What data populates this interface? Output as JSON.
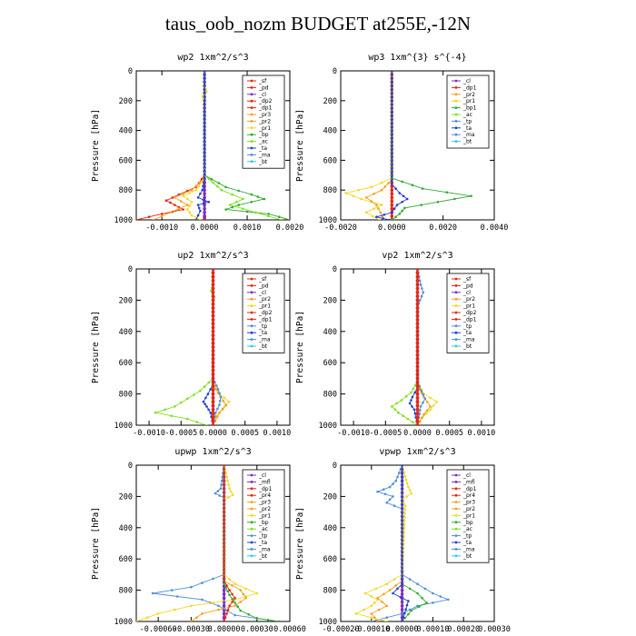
{
  "title": "taus_oob_nozm  BUDGET at255E,-12N",
  "chart_data": [
    {
      "type": "line",
      "title": "wp2  1xm^2/s^3",
      "ylabel": "Pressure [hPa]",
      "xlim": [
        -0.0016,
        0.002
      ],
      "ylim": [
        1000,
        0
      ],
      "xticks": [
        -0.001,
        0.0,
        0.001,
        0.002
      ],
      "xticklabels": [
        "-0.0010",
        "0.0000",
        "0.0010",
        "0.0020"
      ],
      "yticks": [
        0,
        200,
        400,
        600,
        800,
        1000
      ],
      "legend_position": "top-right",
      "legend": [
        "_sf",
        "_pd",
        "_cl",
        "_dp2",
        "_dp1",
        "_pr3",
        "_pr2",
        "_pr1",
        "_bp",
        "_ac",
        "_ta",
        "_ma",
        "_bt"
      ],
      "series": [
        {
          "name": "_sf",
          "color": "#e8250f",
          "y": [
            975,
            1000
          ],
          "x": [
            0.0,
            0.0
          ]
        },
        {
          "name": "_pd",
          "color": "#7b2fbf",
          "y": [
            0,
            1000
          ],
          "x": [
            0.0,
            0.0
          ]
        },
        {
          "name": "_cl",
          "color": "#e8250f",
          "y": [
            0,
            700,
            780,
            830,
            870,
            900,
            930,
            960,
            1000
          ],
          "x": [
            0.0,
            0.0,
            -0.0002,
            -0.0006,
            -0.0009,
            -0.0007,
            -0.0005,
            -0.001,
            -0.0016
          ]
        },
        {
          "name": "_pr1",
          "color": "#f4a020",
          "y": [
            0,
            720,
            800,
            850,
            900,
            950,
            1000
          ],
          "x": [
            0.0,
            0.0,
            -0.0003,
            -0.0007,
            -0.0004,
            -0.0008,
            -0.0012
          ]
        },
        {
          "name": "_pr2",
          "color": "#f4d820",
          "y": [
            0,
            100,
            140,
            170,
            200,
            720,
            800,
            840,
            880,
            930,
            970,
            1000
          ],
          "x": [
            0.0,
            0.0,
            5e-05,
            -5e-05,
            0.0,
            0.0,
            -0.0002,
            -0.0005,
            -0.0003,
            -0.0004,
            -0.0003,
            -0.0001
          ]
        },
        {
          "name": "_bp",
          "color": "#33aa33",
          "y": [
            0,
            700,
            780,
            830,
            860,
            900,
            930,
            960,
            1000
          ],
          "x": [
            0.0,
            0.0,
            0.0005,
            0.0011,
            0.0014,
            0.0008,
            0.0005,
            0.0015,
            0.002
          ]
        },
        {
          "name": "_ac",
          "color": "#80e020",
          "y": [
            0,
            700,
            800,
            860,
            900,
            950,
            1000
          ],
          "x": [
            0.0,
            0.0,
            0.0004,
            0.0009,
            0.0006,
            0.0012,
            0.0018
          ]
        },
        {
          "name": "_ta",
          "color": "#2040d0",
          "y": [
            0,
            720,
            800,
            850,
            880,
            900,
            940,
            1000
          ],
          "x": [
            0.0,
            0.0,
            -5e-05,
            -0.00015,
            0.0001,
            -0.00015,
            -0.0001,
            -0.0002
          ]
        }
      ]
    },
    {
      "type": "line",
      "title": "wp3  1xm^{3} s^{-4}",
      "ylabel": "Pressure [hPa]",
      "xlim": [
        -0.002,
        0.004
      ],
      "ylim": [
        1000,
        0
      ],
      "xticks": [
        -0.002,
        0.0,
        0.002,
        0.004
      ],
      "xticklabels": [
        "-0.0020",
        "0.0000",
        "0.0020",
        "0.0040"
      ],
      "yticks": [
        0,
        200,
        400,
        600,
        800,
        1000
      ],
      "legend_position": "top-right",
      "legend": [
        "_cl",
        "_dp1",
        "_pr2",
        "_pr1",
        "_bp1",
        "_ac",
        "_tp",
        "_ta",
        "_ma",
        "_bt"
      ],
      "series": [
        {
          "name": "_cl",
          "color": "#e8250f",
          "y": [
            0,
            1000
          ],
          "x": [
            0.0,
            0.0
          ]
        },
        {
          "name": "_pr2",
          "color": "#f4d820",
          "y": [
            0,
            720,
            780,
            820,
            860,
            900,
            950,
            1000
          ],
          "x": [
            0.0,
            0.0,
            -0.0008,
            -0.0018,
            -0.0012,
            -0.0004,
            -0.001,
            -0.0005
          ]
        },
        {
          "name": "_pr1",
          "color": "#f4a020",
          "y": [
            0,
            730,
            800,
            850,
            900,
            1000
          ],
          "x": [
            0.0,
            0.0,
            -0.0004,
            -0.001,
            -0.0006,
            -0.0003
          ]
        },
        {
          "name": "_ac",
          "color": "#33aa33",
          "y": [
            0,
            720,
            790,
            840,
            880,
            920,
            960,
            1000
          ],
          "x": [
            0.0,
            0.0,
            0.0012,
            0.0031,
            0.0018,
            0.0005,
            0.0003,
            0.0
          ]
        },
        {
          "name": "_ta",
          "color": "#2040d0",
          "y": [
            0,
            760,
            820,
            860,
            900,
            950,
            980,
            1000
          ],
          "x": [
            0.0,
            0.0,
            0.0003,
            0.0006,
            0.0002,
            0.0,
            -0.0006,
            -0.0001
          ]
        }
      ]
    },
    {
      "type": "line",
      "title": "up2  1xm^2/s^3",
      "ylabel": "Pressure [hPa]",
      "xlim": [
        -0.0012,
        0.0012
      ],
      "ylim": [
        1000,
        0
      ],
      "xticks": [
        -0.001,
        -0.0005,
        0.0,
        0.0005,
        0.001
      ],
      "xticklabels": [
        "-0.0010",
        "-0.0005",
        "0.0000",
        "0.0005",
        "0.0010"
      ],
      "yticks": [
        0,
        200,
        400,
        600,
        800,
        1000
      ],
      "legend_position": "top-right",
      "legend": [
        "_sf",
        "_pd",
        "_cl",
        "_pr2",
        "_pr1",
        "_dp2",
        "_dp1",
        "_tp",
        "_ta",
        "_ma",
        "_bt"
      ],
      "series": [
        {
          "name": "_pd",
          "color": "#7b2fbf",
          "y": [
            0,
            1000
          ],
          "x": [
            0.0,
            0.0
          ]
        },
        {
          "name": "_dp1",
          "color": "#80e020",
          "y": [
            0,
            100,
            140,
            180,
            220,
            700,
            780,
            830,
            880,
            920,
            960,
            1000
          ],
          "x": [
            0.0,
            0.0,
            -3e-05,
            2e-05,
            0.0,
            0.0,
            -0.0002,
            -0.0004,
            -0.0006,
            -0.0009,
            -0.0004,
            -0.0001
          ]
        },
        {
          "name": "_pr2",
          "color": "#f4d820",
          "y": [
            0,
            720,
            800,
            850,
            900,
            940,
            1000
          ],
          "x": [
            0.0,
            0.0,
            0.0001,
            0.00025,
            0.00015,
            5e-05,
            0.0
          ]
        },
        {
          "name": "_pr1",
          "color": "#f4a020",
          "y": [
            0,
            740,
            820,
            870,
            920,
            1000
          ],
          "x": [
            0.0,
            0.0,
            0.00012,
            0.0002,
            0.0001,
            0.0
          ]
        },
        {
          "name": "_tp",
          "color": "#4f8fd8",
          "y": [
            0,
            700,
            770,
            820,
            870,
            920,
            1000
          ],
          "x": [
            0.0,
            0.0,
            8e-05,
            0.00012,
            0.0001,
            4e-05,
            0.0
          ]
        },
        {
          "name": "_ta",
          "color": "#2040d0",
          "y": [
            0,
            740,
            800,
            850,
            880,
            920,
            1000
          ],
          "x": [
            0.0,
            0.0,
            -8e-05,
            -0.00015,
            -0.0001,
            -4e-05,
            0.0
          ]
        },
        {
          "name": "_cl",
          "color": "#e8250f",
          "y": [
            0,
            1000
          ],
          "x": [
            0.0,
            0.0
          ]
        }
      ]
    },
    {
      "type": "line",
      "title": "vp2  1xm^2/s^3",
      "ylabel": "Pressure [hPa]",
      "xlim": [
        -0.0012,
        0.0012
      ],
      "ylim": [
        1000,
        0
      ],
      "xticks": [
        -0.001,
        -0.0005,
        0.0,
        0.0005,
        0.001
      ],
      "xticklabels": [
        "-0.0010",
        "-0.0005",
        "0.0000",
        "0.0005",
        "0.0010"
      ],
      "yticks": [
        0,
        200,
        400,
        600,
        800,
        1000
      ],
      "legend_position": "top-right",
      "legend": [
        "_sf",
        "_pd",
        "_cl",
        "_pr2",
        "_pr1",
        "_dp2",
        "_dp1",
        "_tp",
        "_ta",
        "_ma",
        "_bt"
      ],
      "series": [
        {
          "name": "_pd",
          "color": "#7b2fbf",
          "y": [
            0,
            1000
          ],
          "x": [
            0.0,
            0.0
          ]
        },
        {
          "name": "_dp1",
          "color": "#80e020",
          "y": [
            0,
            720,
            790,
            840,
            880,
            920,
            960,
            1000
          ],
          "x": [
            0.0,
            0.0,
            -0.0001,
            -0.00025,
            -0.0004,
            -0.0003,
            -0.00015,
            0.0
          ]
        },
        {
          "name": "_pr2",
          "color": "#f4d820",
          "y": [
            0,
            720,
            800,
            850,
            900,
            950,
            1000
          ],
          "x": [
            0.0,
            0.0,
            0.0001,
            0.0003,
            0.0002,
            8e-05,
            0.0
          ]
        },
        {
          "name": "_pr1",
          "color": "#f4a020",
          "y": [
            0,
            740,
            820,
            880,
            930,
            1000
          ],
          "x": [
            0.0,
            0.0,
            0.0001,
            0.0002,
            0.0001,
            0.0
          ]
        },
        {
          "name": "_tp",
          "color": "#4f8fd8",
          "y": [
            0,
            100,
            150,
            200,
            240,
            720,
            780,
            830,
            880,
            1000
          ],
          "x": [
            0.0,
            5e-05,
            9e-05,
            4e-05,
            0.0,
            0.0,
            6e-05,
            0.00012,
            5e-05,
            0.0
          ]
        },
        {
          "name": "_ta",
          "color": "#2040d0",
          "y": [
            0,
            760,
            820,
            860,
            900,
            1000
          ],
          "x": [
            0.0,
            0.0,
            -8e-05,
            -0.00012,
            -5e-05,
            0.0
          ]
        },
        {
          "name": "_cl",
          "color": "#e8250f",
          "y": [
            0,
            1000
          ],
          "x": [
            0.0,
            0.0
          ]
        }
      ]
    },
    {
      "type": "line",
      "title": "upwp  1xm^2/s^3",
      "ylabel": "Pressure [hPa]",
      "xlim": [
        -0.0008,
        0.0006
      ],
      "ylim": [
        1000,
        0
      ],
      "xticks": [
        -0.0006,
        -0.0003,
        0.0,
        0.0003,
        0.0006
      ],
      "xticklabels": [
        "-0.00060",
        "-0.00030",
        "0.00000",
        "0.00030",
        "0.00060"
      ],
      "yticks": [
        0,
        200,
        400,
        600,
        800,
        1000
      ],
      "legend_position": "top-right",
      "legend": [
        "_cl",
        "_mfl",
        "_dp1",
        "_pr4",
        "_pr3",
        "_pr2",
        "_pr1",
        "_bp",
        "_ac",
        "_tp",
        "_ta",
        "_ma",
        "_bt"
      ],
      "series": [
        {
          "name": "_cl",
          "color": "#7b2fbf",
          "y": [
            0,
            1000
          ],
          "x": [
            0.0,
            0.0
          ]
        },
        {
          "name": "_tp",
          "color": "#4f8fd8",
          "y": [
            0,
            150,
            180,
            210,
            700,
            780,
            820,
            860,
            900,
            960,
            1000
          ],
          "x": [
            0.0,
            -3e-05,
            -8e-05,
            0.0,
            0.0,
            -0.0003,
            -0.00065,
            -0.0002,
            -5e-05,
            0.0001,
            0.0005
          ]
        },
        {
          "name": "_pr2",
          "color": "#f4d820",
          "y": [
            0,
            150,
            190,
            220,
            700,
            760,
            820,
            860,
            900,
            950,
            1000
          ],
          "x": [
            0.0,
            5e-05,
            8e-05,
            0.0,
            0.0,
            0.0001,
            0.0003,
            0.0001,
            -0.0003,
            -0.0006,
            -0.0008
          ]
        },
        {
          "name": "_pr1",
          "color": "#f4a020",
          "y": [
            0,
            740,
            800,
            850,
            900,
            950,
            1000
          ],
          "x": [
            0.0,
            0.0,
            0.00015,
            0.0002,
            0.0001,
            -0.0002,
            -0.0003
          ]
        },
        {
          "name": "_ac",
          "color": "#33aa33",
          "y": [
            0,
            760,
            830,
            880,
            930,
            980,
            1000
          ],
          "x": [
            0.0,
            0.0,
            5e-05,
            0.0001,
            0.00015,
            0.0003,
            0.0005
          ]
        },
        {
          "name": "_dp1",
          "color": "#e8250f",
          "y": [
            0,
            740,
            800,
            850,
            900,
            1000
          ],
          "x": [
            0.0,
            0.0,
            5e-05,
            0.0001,
            5e-05,
            0.0
          ]
        }
      ]
    },
    {
      "type": "line",
      "title": "vpwp  1xm^2/s^3",
      "ylabel": "Pressure [hPa]",
      "xlim": [
        -0.0002,
        0.0003
      ],
      "ylim": [
        1000,
        0
      ],
      "xticks": [
        -0.0002,
        -0.0001,
        0.0,
        0.0001,
        0.0002,
        0.0003
      ],
      "xticklabels": [
        "-0.00020",
        "-0.00010",
        "0.00000",
        "0.00010",
        "0.00020",
        "0.00030"
      ],
      "yticks": [
        0,
        200,
        400,
        600,
        800,
        1000
      ],
      "legend_position": "top-right",
      "legend": [
        "_cl",
        "_mfl",
        "_dp1",
        "_pr4",
        "_pr3",
        "_pr2",
        "_pr1",
        "_bp",
        "_ac",
        "_tp",
        "_ta",
        "_ma",
        "_bt"
      ],
      "series": [
        {
          "name": "_cl",
          "color": "#7b2fbf",
          "y": [
            0,
            1000
          ],
          "x": [
            0.0,
            0.0
          ]
        },
        {
          "name": "_tp",
          "color": "#4f8fd8",
          "y": [
            0,
            100,
            140,
            170,
            200,
            240,
            280,
            700,
            760,
            820,
            860,
            900,
            950,
            1000
          ],
          "x": [
            0.0,
            -2e-05,
            -4e-05,
            -8e-05,
            -3e-05,
            -5e-05,
            0.0,
            0.0,
            5e-05,
            0.0001,
            0.00015,
            5e-05,
            0.0,
            -0.0001
          ]
        },
        {
          "name": "_pr2",
          "color": "#f4d820",
          "y": [
            0,
            140,
            180,
            220,
            260,
            700,
            760,
            820,
            860,
            900,
            950,
            1000
          ],
          "x": [
            0.0,
            2e-05,
            3e-05,
            0.0,
            1e-05,
            0.0,
            -5e-05,
            -0.00012,
            -8e-05,
            -0.0001,
            -0.00015,
            -5e-05
          ]
        },
        {
          "name": "_pr1",
          "color": "#f4a020",
          "y": [
            0,
            740,
            800,
            850,
            900,
            950,
            1000
          ],
          "x": [
            0.0,
            0.0,
            -4e-05,
            -8e-05,
            -5e-05,
            -0.0001,
            -8e-05
          ]
        },
        {
          "name": "_ac",
          "color": "#33aa33",
          "y": [
            0,
            760,
            820,
            880,
            930,
            1000
          ],
          "x": [
            0.0,
            0.0,
            5e-05,
            8e-05,
            3e-05,
            0.0
          ]
        },
        {
          "name": "_ta",
          "color": "#2040d0",
          "y": [
            0,
            760,
            820,
            870,
            1000
          ],
          "x": [
            0.0,
            0.0,
            -3e-05,
            2e-05,
            0.0
          ]
        }
      ]
    }
  ]
}
